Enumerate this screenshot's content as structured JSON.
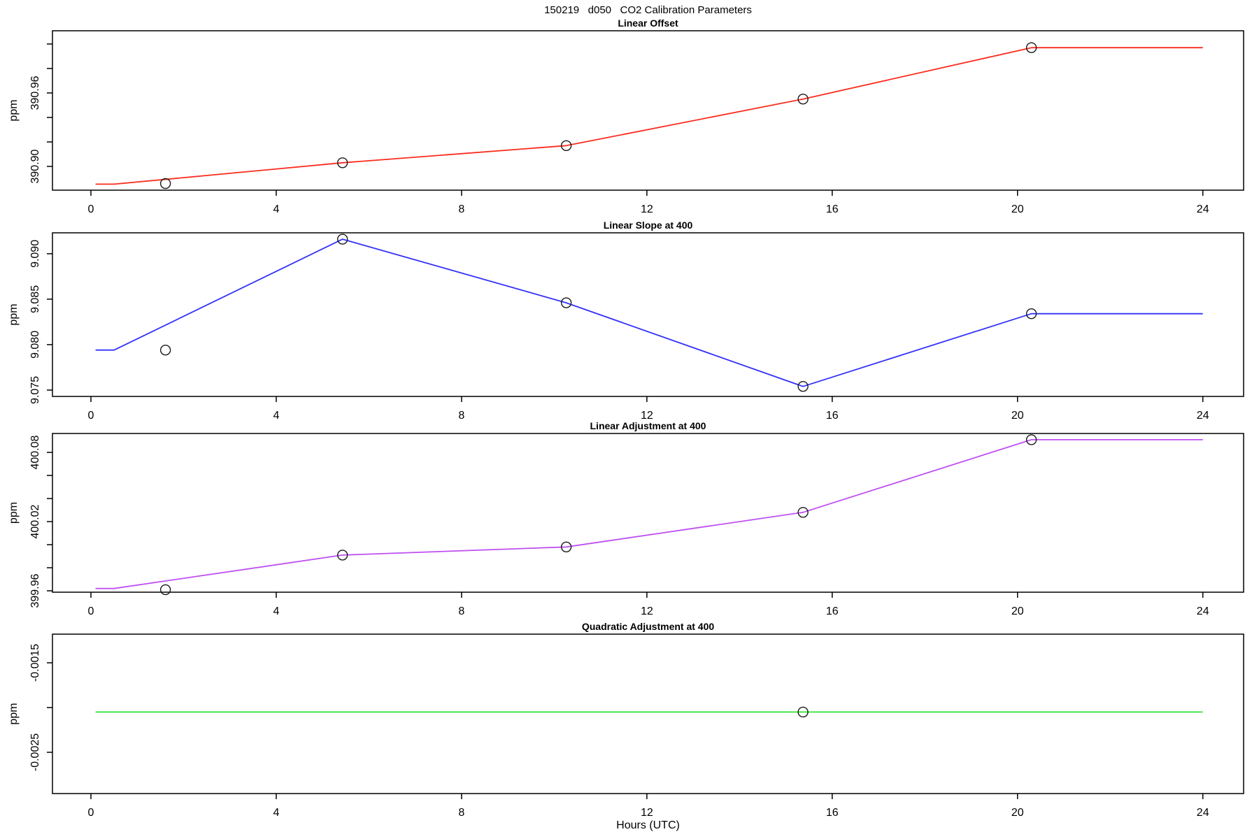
{
  "header": {
    "title": "150219   d050   CO2 Calibration Parameters"
  },
  "x_axis_label": "Hours (UTC)",
  "chart_data": [
    {
      "type": "line",
      "title": "Linear Offset",
      "ylabel": "ppm",
      "color": "#fb2b1e",
      "point_color": "#1a1a1a",
      "xlim": [
        -0.83,
        24.88
      ],
      "ylim": [
        390.8806,
        391.0108
      ],
      "xticks": [
        0,
        4,
        8,
        12,
        16,
        20,
        24
      ],
      "yticks": [
        {
          "v": 390.9,
          "label": "390.90"
        },
        {
          "v": 390.92,
          "label": ""
        },
        {
          "v": 390.94,
          "label": ""
        },
        {
          "v": 390.96,
          "label": "390.96"
        },
        {
          "v": 390.98,
          "label": ""
        },
        {
          "v": 391.0,
          "label": ""
        }
      ],
      "points": [
        [
          1.61,
          390.886
        ],
        [
          5.43,
          390.903
        ],
        [
          10.26,
          390.917
        ],
        [
          15.37,
          390.955
        ],
        [
          20.3,
          390.997
        ]
      ],
      "line": [
        [
          0.1,
          390.8855
        ],
        [
          0.5,
          390.8855
        ],
        [
          5.43,
          390.903
        ],
        [
          10.26,
          390.917
        ],
        [
          15.37,
          390.955
        ],
        [
          20.3,
          390.997
        ],
        [
          24.0,
          390.997
        ]
      ]
    },
    {
      "type": "line",
      "title": "Linear Slope at 400",
      "ylabel": "ppm",
      "color": "#3432f8",
      "point_color": "#1a1a1a",
      "xlim": [
        -0.83,
        24.88
      ],
      "ylim": [
        9.0743,
        9.0923
      ],
      "xticks": [
        0,
        4,
        8,
        12,
        16,
        20,
        24
      ],
      "yticks": [
        {
          "v": 9.075,
          "label": "9.075"
        },
        {
          "v": 9.08,
          "label": "9.080"
        },
        {
          "v": 9.085,
          "label": "9.085"
        },
        {
          "v": 9.09,
          "label": "9.090"
        }
      ],
      "points": [
        [
          1.61,
          9.0794
        ],
        [
          5.43,
          9.0916
        ],
        [
          10.26,
          9.0846
        ],
        [
          15.37,
          9.0754
        ],
        [
          20.3,
          9.0834
        ]
      ],
      "line": [
        [
          0.1,
          9.0794
        ],
        [
          0.5,
          9.0794
        ],
        [
          5.43,
          9.0916
        ],
        [
          10.26,
          9.0846
        ],
        [
          15.37,
          9.0754
        ],
        [
          20.3,
          9.0834
        ],
        [
          24.0,
          9.0834
        ]
      ]
    },
    {
      "type": "line",
      "title": "Linear Adjustment at 400",
      "ylabel": "ppm",
      "color": "#bf4ff2",
      "point_color": "#1a1a1a",
      "xlim": [
        -0.83,
        24.88
      ],
      "ylim": [
        399.9588,
        400.0964
      ],
      "xticks": [
        0,
        4,
        8,
        12,
        16,
        20,
        24
      ],
      "yticks": [
        {
          "v": 399.96,
          "label": "399.96"
        },
        {
          "v": 399.98,
          "label": ""
        },
        {
          "v": 400.0,
          "label": ""
        },
        {
          "v": 400.02,
          "label": "400.02"
        },
        {
          "v": 400.04,
          "label": ""
        },
        {
          "v": 400.06,
          "label": ""
        },
        {
          "v": 400.08,
          "label": "400.08"
        }
      ],
      "points": [
        [
          1.61,
          399.961
        ],
        [
          5.43,
          399.991
        ],
        [
          10.26,
          399.998
        ],
        [
          15.37,
          400.028
        ],
        [
          20.3,
          400.091
        ]
      ],
      "line": [
        [
          0.1,
          399.962
        ],
        [
          0.5,
          399.962
        ],
        [
          5.43,
          399.991
        ],
        [
          10.26,
          399.998
        ],
        [
          15.37,
          400.028
        ],
        [
          20.3,
          400.091
        ],
        [
          24.0,
          400.091
        ]
      ]
    },
    {
      "type": "line",
      "title": "Quadratic Adjustment at 400",
      "ylabel": "ppm",
      "color": "#2fe52f",
      "point_color": "#1a1a1a",
      "xlim": [
        -0.83,
        24.88
      ],
      "ylim": [
        -0.002961,
        -0.00118
      ],
      "xticks": [
        0,
        4,
        8,
        12,
        16,
        20,
        24
      ],
      "yticks": [
        {
          "v": -0.0025,
          "label": "-0.0025"
        },
        {
          "v": -0.002,
          "label": ""
        },
        {
          "v": -0.0015,
          "label": "-0.0015"
        }
      ],
      "points": [
        [
          15.37,
          -0.00205
        ]
      ],
      "line": [
        [
          0.1,
          -0.00205
        ],
        [
          24.0,
          -0.00205
        ]
      ]
    }
  ]
}
